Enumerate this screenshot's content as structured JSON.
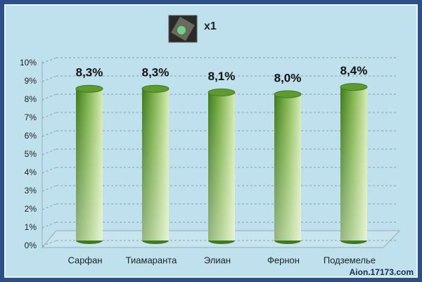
{
  "chart_data": {
    "type": "bar",
    "title": "x1",
    "categories": [
      "Сарфан",
      "Тиамаранта",
      "Элиан",
      "Фернон",
      "Подземелье"
    ],
    "values": [
      8.3,
      8.3,
      8.1,
      8.0,
      8.4
    ],
    "value_labels": [
      "8,3%",
      "8,3%",
      "8,1%",
      "8,0%",
      "8,4%"
    ],
    "color": "#5a9a2a",
    "ylim": [
      0,
      10
    ],
    "yticks": [
      {
        "value": 0,
        "label": "0%"
      },
      {
        "value": 1,
        "label": "1%"
      },
      {
        "value": 2,
        "label": "2%"
      },
      {
        "value": 3,
        "label": "3%"
      },
      {
        "value": 4,
        "label": "4%"
      },
      {
        "value": 5,
        "label": "5%"
      },
      {
        "value": 6,
        "label": "6%"
      },
      {
        "value": 7,
        "label": "7%"
      },
      {
        "value": 8,
        "label": "8%"
      },
      {
        "value": 9,
        "label": "9%"
      },
      {
        "value": 10,
        "label": "10%"
      }
    ],
    "grid": true,
    "watermark": "Aion.17173.com"
  }
}
